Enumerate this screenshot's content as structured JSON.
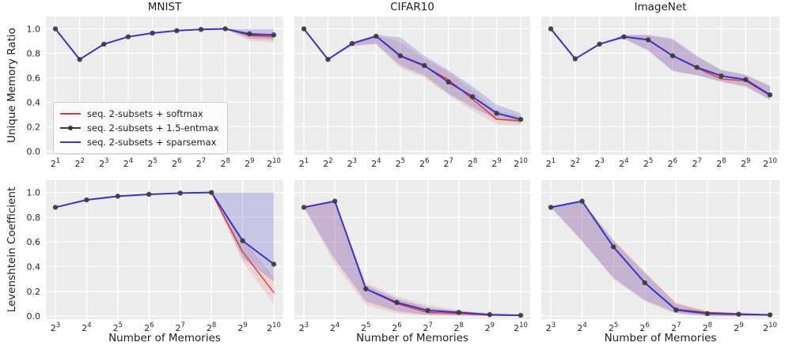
{
  "figure": {
    "background": "#ffffff",
    "axes_background": "#ececec",
    "grid_color": "#ffffff",
    "text_color": "#262626"
  },
  "colors": {
    "softmax": "#e6352f",
    "entmax": "#3a3a3a",
    "sparsemax": "#3a35c4",
    "softmax_band": "rgba(230,80,80,0.16)",
    "sparsemax_band": "rgba(90,85,200,0.26)"
  },
  "legend": {
    "entries": [
      {
        "label": "seq. 2-subsets + softmax",
        "color": "#e6352f",
        "marker": false
      },
      {
        "label": "seq. 2-subsets + 1.5-entmax",
        "color": "#3a3a3a",
        "marker": true
      },
      {
        "label": "seq. 2-subsets + sparsemax",
        "color": "#3a35c4",
        "marker": false
      }
    ]
  },
  "chart_data": [
    {
      "type": "line",
      "title": "MNIST",
      "ylabel": "Unique Memory Ratio",
      "xlabel": "",
      "x_tick_base": 2,
      "x_exponents": [
        1,
        2,
        3,
        4,
        5,
        6,
        7,
        8,
        9,
        10
      ],
      "yticks": [
        0.0,
        0.2,
        0.4,
        0.6,
        0.8,
        1.0
      ],
      "ylim": [
        -0.03,
        1.1
      ],
      "show_yticklabels": true,
      "grid": true,
      "legend_position": "lower-left",
      "series": [
        {
          "name": "seq. 2-subsets + 1.5-entmax",
          "color": "#3a3a3a",
          "marker": true,
          "width": 1.4,
          "values": [
            1.0,
            0.75,
            0.875,
            0.935,
            0.965,
            0.985,
            0.995,
            1.0,
            0.96,
            0.95
          ]
        },
        {
          "name": "seq. 2-subsets + softmax",
          "color": "#e6352f",
          "marker": false,
          "width": 1.4,
          "values": [
            1.0,
            0.75,
            0.875,
            0.935,
            0.965,
            0.985,
            0.995,
            1.0,
            0.945,
            0.935
          ]
        },
        {
          "name": "seq. 2-subsets + sparsemax",
          "color": "#3a35c4",
          "marker": false,
          "width": 2.0,
          "values": [
            1.0,
            0.75,
            0.875,
            0.935,
            0.965,
            0.985,
            0.995,
            1.0,
            0.955,
            0.95
          ]
        }
      ],
      "bands": [
        {
          "series": "softmax",
          "color": "rgba(230,80,80,0.16)",
          "lower": [
            1.0,
            0.75,
            0.875,
            0.935,
            0.965,
            0.985,
            0.995,
            1.0,
            0.9,
            0.89
          ],
          "upper": [
            1.0,
            0.75,
            0.875,
            0.935,
            0.965,
            0.985,
            0.995,
            1.0,
            0.97,
            0.97
          ]
        },
        {
          "series": "sparsemax",
          "color": "rgba(90,85,200,0.26)",
          "lower": [
            1.0,
            0.75,
            0.875,
            0.935,
            0.965,
            0.985,
            0.995,
            1.0,
            0.92,
            0.91
          ],
          "upper": [
            1.0,
            0.75,
            0.875,
            0.935,
            0.965,
            0.985,
            0.995,
            1.0,
            1.0,
            1.0
          ]
        }
      ]
    },
    {
      "type": "line",
      "title": "CIFAR10",
      "ylabel": "",
      "xlabel": "",
      "x_tick_base": 2,
      "x_exponents": [
        1,
        2,
        3,
        4,
        5,
        6,
        7,
        8,
        9,
        10
      ],
      "yticks": [
        0.0,
        0.2,
        0.4,
        0.6,
        0.8,
        1.0
      ],
      "ylim": [
        -0.03,
        1.1
      ],
      "show_yticklabels": false,
      "grid": true,
      "series": [
        {
          "name": "seq. 2-subsets + 1.5-entmax",
          "color": "#3a3a3a",
          "marker": true,
          "width": 1.4,
          "values": [
            1.0,
            0.75,
            0.88,
            0.94,
            0.78,
            0.7,
            0.565,
            0.445,
            0.31,
            0.26
          ]
        },
        {
          "name": "seq. 2-subsets + softmax",
          "color": "#e6352f",
          "marker": false,
          "width": 1.4,
          "values": [
            1.0,
            0.75,
            0.88,
            0.94,
            0.775,
            0.695,
            0.585,
            0.425,
            0.26,
            0.25
          ]
        },
        {
          "name": "seq. 2-subsets + sparsemax",
          "color": "#3a35c4",
          "marker": false,
          "width": 2.0,
          "values": [
            1.0,
            0.75,
            0.88,
            0.94,
            0.78,
            0.7,
            0.565,
            0.445,
            0.31,
            0.26
          ]
        }
      ],
      "bands": [
        {
          "series": "softmax",
          "color": "rgba(230,80,80,0.16)",
          "lower": [
            1.0,
            0.75,
            0.86,
            0.87,
            0.68,
            0.6,
            0.46,
            0.33,
            0.22,
            0.21
          ],
          "upper": [
            1.0,
            0.75,
            0.89,
            0.95,
            0.89,
            0.76,
            0.65,
            0.5,
            0.33,
            0.29
          ]
        },
        {
          "series": "sparsemax",
          "color": "rgba(90,85,200,0.26)",
          "lower": [
            1.0,
            0.75,
            0.86,
            0.88,
            0.7,
            0.62,
            0.47,
            0.36,
            0.26,
            0.23
          ],
          "upper": [
            1.0,
            0.75,
            0.89,
            0.95,
            0.93,
            0.78,
            0.66,
            0.53,
            0.38,
            0.31
          ]
        }
      ]
    },
    {
      "type": "line",
      "title": "ImageNet",
      "ylabel": "",
      "xlabel": "",
      "x_tick_base": 2,
      "x_exponents": [
        1,
        2,
        3,
        4,
        5,
        6,
        7,
        8,
        9,
        10
      ],
      "yticks": [
        0.0,
        0.2,
        0.4,
        0.6,
        0.8,
        1.0
      ],
      "ylim": [
        -0.03,
        1.1
      ],
      "show_yticklabels": false,
      "grid": true,
      "series": [
        {
          "name": "seq. 2-subsets + 1.5-entmax",
          "color": "#3a3a3a",
          "marker": true,
          "width": 1.4,
          "values": [
            1.0,
            0.755,
            0.875,
            0.935,
            0.91,
            0.78,
            0.685,
            0.615,
            0.585,
            0.46
          ]
        },
        {
          "name": "seq. 2-subsets + softmax",
          "color": "#e6352f",
          "marker": false,
          "width": 1.4,
          "values": [
            1.0,
            0.755,
            0.875,
            0.935,
            0.91,
            0.78,
            0.68,
            0.59,
            0.575,
            0.455
          ]
        },
        {
          "name": "seq. 2-subsets + sparsemax",
          "color": "#3a35c4",
          "marker": false,
          "width": 2.0,
          "values": [
            1.0,
            0.755,
            0.875,
            0.935,
            0.91,
            0.78,
            0.685,
            0.615,
            0.585,
            0.46
          ]
        }
      ],
      "bands": [
        {
          "series": "softmax",
          "color": "rgba(230,80,80,0.16)",
          "lower": [
            1.0,
            0.755,
            0.875,
            0.92,
            0.83,
            0.66,
            0.62,
            0.565,
            0.525,
            0.42
          ],
          "upper": [
            1.0,
            0.755,
            0.875,
            0.95,
            0.95,
            0.91,
            0.77,
            0.66,
            0.62,
            0.53
          ]
        },
        {
          "series": "sparsemax",
          "color": "rgba(90,85,200,0.26)",
          "lower": [
            1.0,
            0.755,
            0.875,
            0.92,
            0.82,
            0.655,
            0.62,
            0.57,
            0.53,
            0.42
          ],
          "upper": [
            1.0,
            0.755,
            0.875,
            0.95,
            0.95,
            0.92,
            0.78,
            0.665,
            0.625,
            0.535
          ]
        }
      ]
    },
    {
      "type": "line",
      "title": "",
      "ylabel": "Levenshtein Coefficient",
      "xlabel": "Number of Memories",
      "x_tick_base": 2,
      "x_exponents": [
        3,
        4,
        5,
        6,
        7,
        8,
        9,
        10
      ],
      "yticks": [
        0.0,
        0.2,
        0.4,
        0.6,
        0.8,
        1.0
      ],
      "ylim": [
        -0.025,
        1.1
      ],
      "show_yticklabels": true,
      "grid": true,
      "series": [
        {
          "name": "seq. 2-subsets + 1.5-entmax",
          "color": "#3a3a3a",
          "marker": true,
          "width": 1.4,
          "values": [
            0.88,
            0.94,
            0.97,
            0.985,
            0.995,
            1.0,
            0.61,
            0.42
          ]
        },
        {
          "name": "seq. 2-subsets + softmax",
          "color": "#e6352f",
          "marker": false,
          "width": 1.4,
          "values": [
            0.88,
            0.94,
            0.97,
            0.985,
            0.995,
            1.0,
            0.52,
            0.19
          ]
        },
        {
          "name": "seq. 2-subsets + sparsemax",
          "color": "#3a35c4",
          "marker": false,
          "width": 2.0,
          "values": [
            0.88,
            0.94,
            0.97,
            0.985,
            0.995,
            1.0,
            0.61,
            0.42
          ]
        }
      ],
      "bands": [
        {
          "series": "softmax",
          "color": "rgba(230,80,80,0.16)",
          "lower": [
            0.88,
            0.94,
            0.97,
            0.985,
            0.995,
            1.0,
            0.44,
            0.1
          ],
          "upper": [
            0.88,
            0.94,
            0.97,
            0.985,
            0.995,
            1.0,
            0.63,
            0.31
          ]
        },
        {
          "series": "sparsemax",
          "color": "rgba(90,85,200,0.26)",
          "lower": [
            0.88,
            0.94,
            0.97,
            0.985,
            0.995,
            1.0,
            0.47,
            0.28
          ],
          "upper": [
            0.88,
            0.94,
            0.97,
            0.985,
            0.995,
            1.0,
            1.0,
            1.0
          ]
        }
      ]
    },
    {
      "type": "line",
      "title": "",
      "ylabel": "",
      "xlabel": "Number of Memories",
      "x_tick_base": 2,
      "x_exponents": [
        3,
        4,
        5,
        6,
        7,
        8,
        9,
        10
      ],
      "yticks": [
        0.0,
        0.2,
        0.4,
        0.6,
        0.8,
        1.0
      ],
      "ylim": [
        -0.025,
        1.1
      ],
      "show_yticklabels": false,
      "grid": true,
      "series": [
        {
          "name": "seq. 2-subsets + 1.5-entmax",
          "color": "#3a3a3a",
          "marker": true,
          "width": 1.4,
          "values": [
            0.88,
            0.93,
            0.22,
            0.11,
            0.045,
            0.03,
            0.012,
            0.006
          ]
        },
        {
          "name": "seq. 2-subsets + softmax",
          "color": "#e6352f",
          "marker": false,
          "width": 1.4,
          "values": [
            0.88,
            0.93,
            0.22,
            0.1,
            0.03,
            0.02,
            0.008,
            0.005
          ]
        },
        {
          "name": "seq. 2-subsets + sparsemax",
          "color": "#3a35c4",
          "marker": false,
          "width": 2.0,
          "values": [
            0.88,
            0.93,
            0.22,
            0.11,
            0.045,
            0.03,
            0.012,
            0.006
          ]
        }
      ],
      "bands": [
        {
          "series": "softmax",
          "color": "rgba(230,80,80,0.16)",
          "lower": [
            0.88,
            0.42,
            0.09,
            0.02,
            0.005,
            0.0,
            0.0,
            0.0
          ],
          "upper": [
            0.88,
            0.93,
            0.27,
            0.16,
            0.09,
            0.05,
            0.02,
            0.01
          ]
        },
        {
          "series": "sparsemax",
          "color": "rgba(90,85,200,0.26)",
          "lower": [
            0.88,
            0.46,
            0.12,
            0.04,
            0.01,
            0.005,
            0.0,
            0.0
          ],
          "upper": [
            0.88,
            0.93,
            0.25,
            0.14,
            0.07,
            0.04,
            0.02,
            0.01
          ]
        }
      ]
    },
    {
      "type": "line",
      "title": "",
      "ylabel": "",
      "xlabel": "Number of Memories",
      "x_tick_base": 2,
      "x_exponents": [
        3,
        4,
        5,
        6,
        7,
        8,
        9,
        10
      ],
      "yticks": [
        0.0,
        0.2,
        0.4,
        0.6,
        0.8,
        1.0
      ],
      "ylim": [
        -0.025,
        1.1
      ],
      "show_yticklabels": false,
      "grid": true,
      "series": [
        {
          "name": "seq. 2-subsets + 1.5-entmax",
          "color": "#3a3a3a",
          "marker": true,
          "width": 1.4,
          "values": [
            0.88,
            0.93,
            0.56,
            0.27,
            0.05,
            0.02,
            0.015,
            0.01
          ]
        },
        {
          "name": "seq. 2-subsets + softmax",
          "color": "#e6352f",
          "marker": false,
          "width": 1.4,
          "values": [
            0.88,
            0.93,
            0.56,
            0.27,
            0.055,
            0.03,
            0.02,
            0.01
          ]
        },
        {
          "name": "seq. 2-subsets + sparsemax",
          "color": "#3a35c4",
          "marker": false,
          "width": 2.0,
          "values": [
            0.88,
            0.93,
            0.56,
            0.27,
            0.05,
            0.02,
            0.015,
            0.01
          ]
        }
      ],
      "bands": [
        {
          "series": "softmax",
          "color": "rgba(230,80,80,0.16)",
          "lower": [
            0.88,
            0.6,
            0.3,
            0.12,
            0.02,
            0.0,
            0.0,
            0.0
          ],
          "upper": [
            0.88,
            0.93,
            0.62,
            0.36,
            0.11,
            0.04,
            0.02,
            0.015
          ]
        },
        {
          "series": "sparsemax",
          "color": "rgba(90,85,200,0.26)",
          "lower": [
            0.88,
            0.61,
            0.31,
            0.13,
            0.025,
            0.0,
            0.0,
            0.0
          ],
          "upper": [
            0.88,
            0.93,
            0.61,
            0.35,
            0.1,
            0.035,
            0.02,
            0.015
          ]
        }
      ]
    }
  ]
}
